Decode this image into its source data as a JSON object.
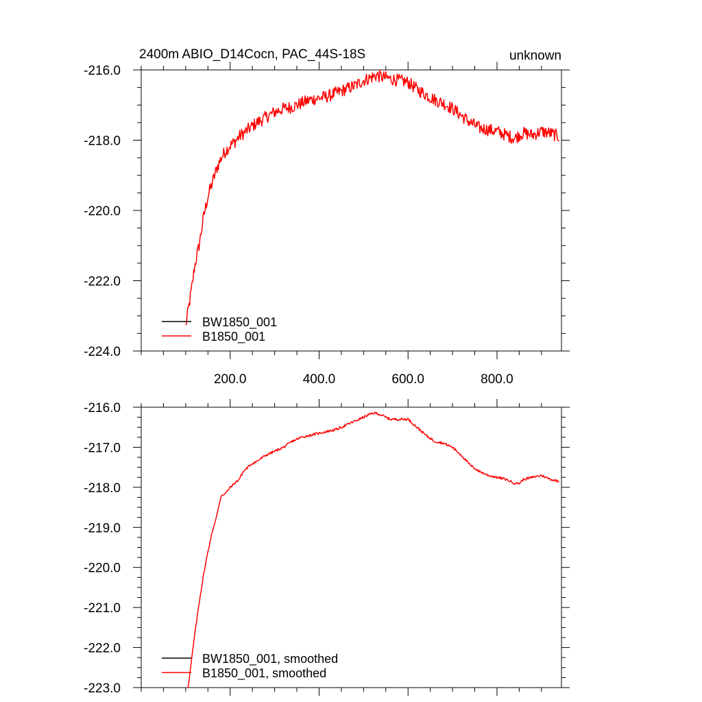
{
  "chart_data": [
    {
      "type": "line",
      "title": "2400m ABIO_D14Cocn, PAC_44S-18S",
      "right_title": "unknown",
      "xlim": [
        0,
        945
      ],
      "ylim": [
        -224,
        -216
      ],
      "x_ticks": [
        200,
        400,
        600,
        800
      ],
      "x_tick_labels": [
        "200.0",
        "400.0",
        "600.0",
        "800.0"
      ],
      "y_ticks": [
        -216,
        -218,
        -220,
        -222,
        -224
      ],
      "y_tick_labels": [
        "-216.0",
        "-218.0",
        "-220.0",
        "-222.0",
        "-224.0"
      ],
      "legend_position": "bottom-left",
      "legend": [
        {
          "name": "BW1850_001",
          "color": "#000000"
        },
        {
          "name": "B1850_001",
          "color": "#ff0000"
        }
      ],
      "series": [
        {
          "name": "B1850_001",
          "color": "#ff0000",
          "noise": 0.18,
          "x": [
            100,
            105,
            110,
            115,
            120,
            125,
            130,
            135,
            140,
            145,
            150,
            160,
            170,
            180,
            190,
            200,
            210,
            220,
            230,
            240,
            250,
            260,
            280,
            300,
            320,
            340,
            360,
            380,
            400,
            420,
            440,
            460,
            480,
            500,
            520,
            530,
            540,
            560,
            580,
            600,
            620,
            640,
            660,
            680,
            700,
            720,
            740,
            760,
            780,
            800,
            820,
            840,
            850,
            860,
            880,
            900,
            920,
            940
          ],
          "y": [
            -223.3,
            -222.9,
            -222.5,
            -222.1,
            -221.6,
            -221.3,
            -221.0,
            -220.6,
            -220.2,
            -219.9,
            -219.6,
            -219.2,
            -218.8,
            -218.5,
            -218.3,
            -218.15,
            -218.05,
            -217.9,
            -217.8,
            -217.7,
            -217.6,
            -217.5,
            -217.35,
            -217.2,
            -217.1,
            -217.05,
            -216.95,
            -216.85,
            -216.8,
            -216.75,
            -216.65,
            -216.55,
            -216.45,
            -216.3,
            -216.2,
            -216.15,
            -216.2,
            -216.25,
            -216.3,
            -216.35,
            -216.55,
            -216.7,
            -216.85,
            -216.95,
            -217.1,
            -217.3,
            -217.5,
            -217.65,
            -217.7,
            -217.75,
            -217.85,
            -217.95,
            -217.85,
            -217.8,
            -217.85,
            -217.75,
            -217.8,
            -217.9
          ]
        }
      ]
    },
    {
      "type": "line",
      "title": "",
      "xlim": [
        0,
        945
      ],
      "ylim": [
        -223,
        -216
      ],
      "x_ticks": [
        200,
        400,
        600,
        800
      ],
      "y_ticks": [
        -216,
        -217,
        -218,
        -219,
        -220,
        -221,
        -222,
        -223
      ],
      "y_tick_labels": [
        "-216.0",
        "-217.0",
        "-218.0",
        "-219.0",
        "-220.0",
        "-221.0",
        "-222.0",
        "-223.0"
      ],
      "legend_position": "bottom-left",
      "legend": [
        {
          "name": "BW1850_001, smoothed",
          "color": "#000000"
        },
        {
          "name": "B1850_001, smoothed",
          "color": "#ff0000"
        }
      ],
      "series": [
        {
          "name": "B1850_001, smoothed",
          "color": "#ff0000",
          "noise": 0.03,
          "x": [
            105,
            110,
            120,
            130,
            140,
            150,
            160,
            170,
            180,
            190,
            200,
            210,
            220,
            230,
            240,
            250,
            260,
            280,
            300,
            320,
            340,
            360,
            380,
            400,
            420,
            440,
            460,
            480,
            500,
            520,
            530,
            540,
            560,
            580,
            600,
            620,
            640,
            660,
            680,
            700,
            720,
            740,
            760,
            780,
            800,
            820,
            840,
            850,
            860,
            880,
            900,
            920,
            940
          ],
          "y": [
            -223.0,
            -222.6,
            -221.7,
            -220.9,
            -220.2,
            -219.6,
            -219.1,
            -218.7,
            -218.2,
            -218.15,
            -218.0,
            -217.9,
            -217.8,
            -217.6,
            -217.5,
            -217.4,
            -217.35,
            -217.2,
            -217.1,
            -217.0,
            -216.85,
            -216.75,
            -216.7,
            -216.65,
            -216.6,
            -216.55,
            -216.45,
            -216.35,
            -216.25,
            -216.15,
            -216.15,
            -216.2,
            -216.3,
            -216.3,
            -216.3,
            -216.5,
            -216.7,
            -216.85,
            -216.9,
            -217.0,
            -217.2,
            -217.45,
            -217.6,
            -217.7,
            -217.75,
            -217.8,
            -217.9,
            -217.9,
            -217.8,
            -217.75,
            -217.7,
            -217.8,
            -217.85
          ]
        }
      ]
    }
  ]
}
